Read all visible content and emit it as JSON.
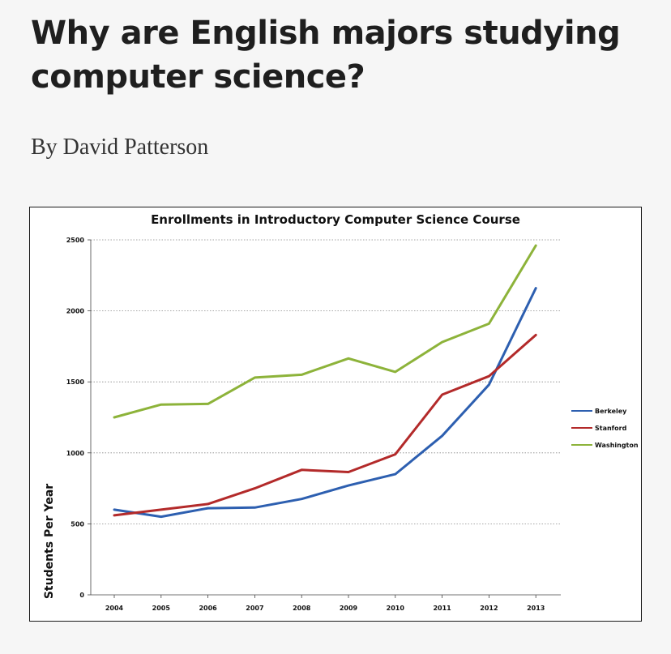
{
  "article": {
    "headline": "Why are English majors studying computer science?",
    "byline": "By David Patterson"
  },
  "chart_data": {
    "type": "line",
    "title": "Enrollments in Introductory Computer Science Course",
    "xlabel": "",
    "ylabel": "Students Per Year",
    "x": [
      "2004",
      "2005",
      "2006",
      "2007",
      "2008",
      "2009",
      "2010",
      "2011",
      "2012",
      "2013"
    ],
    "ylim": [
      0,
      2500
    ],
    "yticks": [
      0,
      500,
      1000,
      1500,
      2000,
      2500
    ],
    "grid": "horizontal dotted",
    "legend_position": "right",
    "series": [
      {
        "name": "Berkeley",
        "color": "#2d5fb0",
        "values": [
          600,
          550,
          610,
          615,
          675,
          770,
          850,
          1120,
          1480,
          2160
        ]
      },
      {
        "name": "Stanford",
        "color": "#b32a2a",
        "values": [
          560,
          600,
          640,
          750,
          880,
          865,
          990,
          1410,
          1540,
          1830
        ]
      },
      {
        "name": "Washington",
        "color": "#8db33a",
        "values": [
          1250,
          1340,
          1345,
          1530,
          1550,
          1665,
          1570,
          1780,
          1910,
          2460
        ]
      }
    ]
  }
}
